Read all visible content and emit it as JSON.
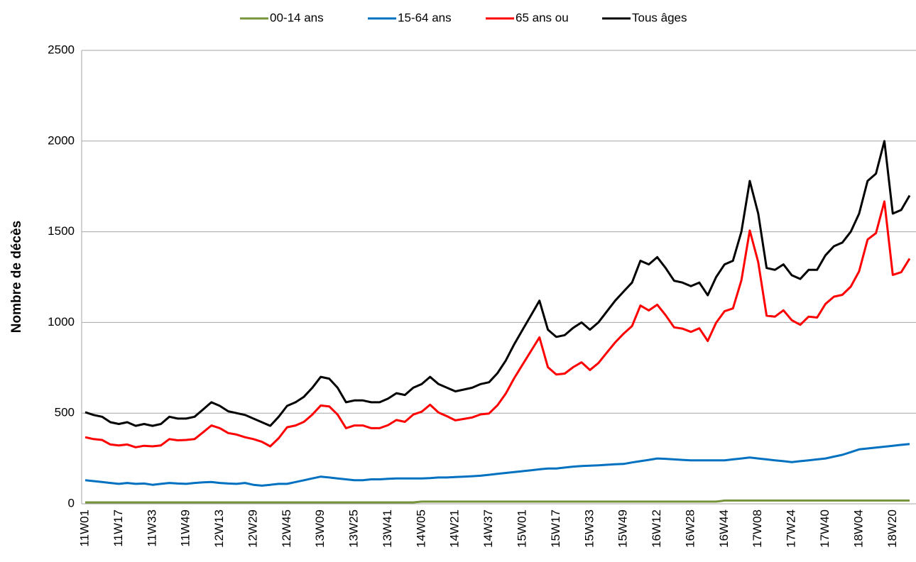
{
  "chart_data": {
    "type": "line",
    "y_label": "Nombre de décès",
    "categories": [
      "11W01",
      null,
      null,
      null,
      "11W17",
      null,
      null,
      null,
      "11W33",
      null,
      null,
      null,
      "11W49",
      null,
      null,
      null,
      "12W13",
      null,
      null,
      null,
      "12W29",
      null,
      null,
      null,
      "12W45",
      null,
      null,
      null,
      "13W09",
      null,
      null,
      null,
      "13W25",
      null,
      null,
      null,
      "13W41",
      null,
      null,
      null,
      "14W05",
      null,
      null,
      null,
      "14W21",
      null,
      null,
      null,
      "14W37",
      null,
      null,
      null,
      "15W01",
      null,
      null,
      null,
      "15W17",
      null,
      null,
      null,
      "15W33",
      null,
      null,
      null,
      "15W49",
      null,
      null,
      null,
      "16W12",
      null,
      null,
      null,
      "16W28",
      null,
      null,
      null,
      "16W44",
      null,
      null,
      null,
      "17W08",
      null,
      null,
      null,
      "17W24",
      null,
      null,
      null,
      "17W40",
      null,
      null,
      null,
      "18W04",
      null,
      null,
      null,
      "18W20",
      null,
      null
    ],
    "series": [
      {
        "name": "00-14 ans",
        "color": "#77933c",
        "values": [
          8,
          8,
          8,
          8,
          8,
          8,
          8,
          8,
          8,
          8,
          8,
          8,
          8,
          8,
          8,
          8,
          8,
          8,
          8,
          8,
          8,
          8,
          8,
          8,
          8,
          8,
          8,
          8,
          8,
          8,
          8,
          8,
          8,
          8,
          8,
          8,
          8,
          8,
          8,
          8,
          12,
          12,
          12,
          12,
          12,
          12,
          12,
          12,
          12,
          12,
          12,
          12,
          12,
          12,
          12,
          12,
          12,
          12,
          12,
          12,
          12,
          12,
          12,
          12,
          12,
          12,
          12,
          12,
          12,
          12,
          12,
          12,
          12,
          12,
          12,
          12,
          18,
          18,
          18,
          18,
          18,
          18,
          18,
          18,
          18,
          18,
          18,
          18,
          18,
          18,
          18,
          18,
          18,
          18,
          18,
          18,
          18,
          18,
          18
        ]
      },
      {
        "name": "15-64 ans",
        "color": "#0070c0",
        "values": [
          130,
          125,
          120,
          115,
          110,
          115,
          110,
          112,
          105,
          110,
          115,
          112,
          110,
          115,
          118,
          120,
          115,
          112,
          110,
          115,
          105,
          100,
          105,
          110,
          110,
          120,
          130,
          140,
          150,
          145,
          140,
          135,
          130,
          130,
          135,
          135,
          138,
          140,
          140,
          140,
          140,
          142,
          145,
          145,
          148,
          150,
          152,
          155,
          160,
          165,
          170,
          175,
          180,
          185,
          190,
          195,
          195,
          200,
          205,
          208,
          210,
          212,
          215,
          218,
          220,
          228,
          235,
          242,
          250,
          248,
          245,
          242,
          240,
          240,
          240,
          240,
          240,
          245,
          250,
          255,
          250,
          245,
          240,
          235,
          230,
          235,
          240,
          245,
          250,
          260,
          270,
          285,
          300,
          305,
          310,
          315,
          320,
          325,
          330
        ]
      },
      {
        "name": "65 ans ou",
        "color": "#ff0000",
        "values": [
          367,
          357,
          352,
          327,
          322,
          327,
          312,
          320,
          317,
          322,
          357,
          350,
          352,
          357,
          394,
          432,
          417,
          390,
          382,
          367,
          357,
          342,
          317,
          362,
          422,
          432,
          452,
          492,
          542,
          537,
          492,
          417,
          432,
          432,
          417,
          417,
          434,
          462,
          452,
          492,
          508,
          546,
          503,
          483,
          460,
          468,
          476,
          493,
          498,
          543,
          608,
          693,
          768,
          843,
          918,
          753,
          713,
          718,
          753,
          780,
          738,
          776,
          833,
          890,
          938,
          980,
          1093,
          1066,
          1098,
          1040,
          973,
          966,
          948,
          968,
          898,
          998,
          1062,
          1077,
          1232,
          1507,
          1332,
          1037,
          1032,
          1067,
          1012,
          987,
          1032,
          1027,
          1102,
          1142,
          1152,
          1197,
          1282,
          1457,
          1492,
          1667,
          1262,
          1277,
          1352
        ]
      },
      {
        "name": "Tous âges",
        "color": "#000000",
        "values": [
          505,
          490,
          480,
          450,
          440,
          450,
          430,
          440,
          430,
          440,
          480,
          470,
          470,
          480,
          520,
          560,
          540,
          510,
          500,
          490,
          470,
          450,
          430,
          480,
          540,
          560,
          590,
          640,
          700,
          690,
          640,
          560,
          570,
          570,
          560,
          560,
          580,
          610,
          600,
          640,
          660,
          700,
          660,
          640,
          620,
          630,
          640,
          660,
          670,
          720,
          790,
          880,
          960,
          1040,
          1120,
          960,
          920,
          930,
          970,
          1000,
          960,
          1000,
          1060,
          1120,
          1170,
          1220,
          1340,
          1320,
          1360,
          1300,
          1230,
          1220,
          1200,
          1220,
          1150,
          1250,
          1320,
          1340,
          1500,
          1780,
          1600,
          1300,
          1290,
          1320,
          1260,
          1240,
          1290,
          1290,
          1370,
          1420,
          1440,
          1500,
          1600,
          1780,
          1820,
          2000,
          1600,
          1620,
          1700
        ]
      }
    ],
    "ylim": [
      0,
      2500
    ],
    "yticks": [
      0,
      500,
      1000,
      1500,
      2000,
      2500
    ],
    "grid": true,
    "legend": "top"
  }
}
